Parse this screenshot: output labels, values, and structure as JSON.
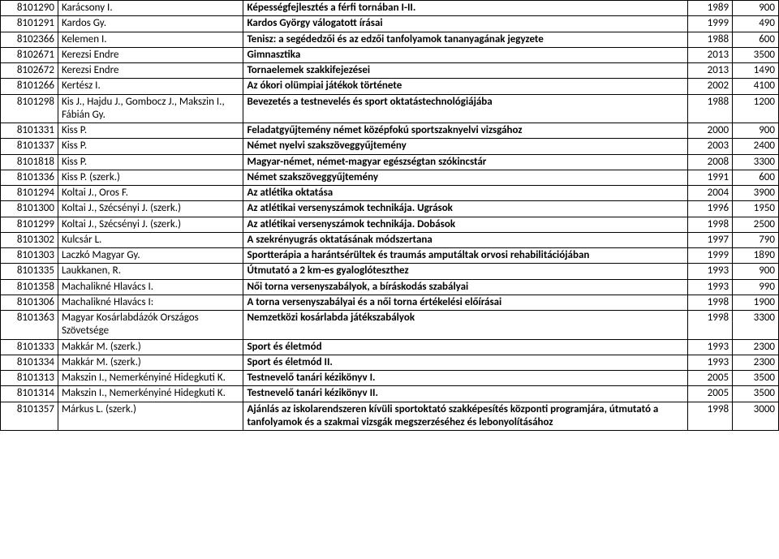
{
  "rows": [
    {
      "id": "8101290",
      "author": "Karácsony I.",
      "title": "Képességfejlesztés a férfi tornában I-II.",
      "year": "1989",
      "num": "900"
    },
    {
      "id": "8101291",
      "author": "Kardos Gy.",
      "title": "Kardos György válogatott írásai",
      "year": "1999",
      "num": "490"
    },
    {
      "id": "8102366",
      "author": "Kelemen I.",
      "title": "Tenisz: a segédedzői  és az edzői tanfolyamok tananyagának jegyzete",
      "year": "1988",
      "num": "600"
    },
    {
      "id": "8102671",
      "author": "Kerezsi Endre",
      "title": "Gimnasztika",
      "year": "2013",
      "num": "3500"
    },
    {
      "id": "8102672",
      "author": "Kerezsi Endre",
      "title": "Tornaelemek szakkifejezései",
      "year": "2013",
      "num": "1490"
    },
    {
      "id": "8101266",
      "author": "Kertész I.",
      "title": "Az ókori olümpiai játékok története",
      "year": "2002",
      "num": "4100"
    },
    {
      "id": "8101298",
      "author": "Kis J., Hajdu J., Gombocz J., Makszin I., Fábián Gy.",
      "title": "Bevezetés a testnevelés és sport oktatástechnológiájába",
      "year": "1988",
      "num": "1200"
    },
    {
      "id": "8101331",
      "author": "Kiss P.",
      "title": "Feladatgyűjtemény  német középfokú sportszaknyelvi vizsgához",
      "year": "2000",
      "num": "900"
    },
    {
      "id": "8101337",
      "author": "Kiss P.",
      "title": "Német nyelvi szakszöveggyűjtemény",
      "year": "2003",
      "num": "2400"
    },
    {
      "id": "8101818",
      "author": "Kiss P.",
      "title": "Magyar-német, német-magyar egészségtan szókincstár",
      "year": "2008",
      "num": "3300"
    },
    {
      "id": "8101336",
      "author": "Kiss P. (szerk.)",
      "title": "Német szakszöveggyűjtemény",
      "year": "1991",
      "num": "600"
    },
    {
      "id": "8101294",
      "author": "Koltai J., Oros F.",
      "title": "Az atlétika oktatása",
      "year": "2004",
      "num": "3900"
    },
    {
      "id": "8101300",
      "author": "Koltai J., Szécsényi J. (szerk.)",
      "title": "Az atlétikai versenyszámok technikája. Ugrások",
      "year": "1996",
      "num": "1950"
    },
    {
      "id": "8101299",
      "author": "Koltai J., Szécsényi J. (szerk.)",
      "title": "Az atlétikai versenyszámok technikája. Dobások",
      "year": "1998",
      "num": "2500"
    },
    {
      "id": "8101302",
      "author": "Kulcsár L.",
      "title": "A szekrényugrás oktatásának módszertana",
      "year": "1997",
      "num": "790"
    },
    {
      "id": "8101303",
      "author": "Laczkó Magyar Gy.",
      "title": "Sportterápia a harántsérültek és traumás amputáltak orvosi rehabilitációjában",
      "year": "1999",
      "num": "1890"
    },
    {
      "id": "8101335",
      "author": "Laukkanen, R.",
      "title": "Útmutató a 2 km-es  gyaloglóteszthez",
      "year": "1993",
      "num": "900"
    },
    {
      "id": "8101358",
      "author": "Machalikné Hlavács I.",
      "title": "Női torna versenyszabályok, a bíráskodás szabályai",
      "year": "1993",
      "num": "990"
    },
    {
      "id": "8101306",
      "author": "Machalikné Hlavács I:",
      "title": "A torna versenyszabályai és a női torna értékelési előírásai",
      "year": "1998",
      "num": "1900"
    },
    {
      "id": "8101363",
      "author": "Magyar Kosárlabdázók Országos Szövetsége",
      "title": "Nemzetközi kosárlabda játékszabályok",
      "year": "1998",
      "num": "3300"
    },
    {
      "id": "8101333",
      "author": "Makkár M. (szerk.)",
      "title": "Sport és életmód",
      "year": "1993",
      "num": "2300"
    },
    {
      "id": "8101334",
      "author": "Makkár M. (szerk.)",
      "title": "Sport és életmód II.",
      "year": "1993",
      "num": "2300"
    },
    {
      "id": "8101313",
      "author": "Makszin I., Nemerkényiné Hidegkuti K.",
      "title": "Testnevelő tanári kézikönyv I.",
      "year": "2005",
      "num": "3500"
    },
    {
      "id": "8101314",
      "author": "Makszin I., Nemerkényiné Hidegkuti K.",
      "title": "Testnevelő tanári kézikönyv II.",
      "year": "2005",
      "num": "3500"
    },
    {
      "id": "8101357",
      "author": "Márkus L. (szerk.)",
      "title": "Ajánlás az iskolarendszeren kívüli sportoktató szakképesítés központi programjára, útmutató a tanfolyamok és a szakmai vizsgák megszerzéséhez és lebonyolításához",
      "year": "1998",
      "num": "3000"
    }
  ]
}
